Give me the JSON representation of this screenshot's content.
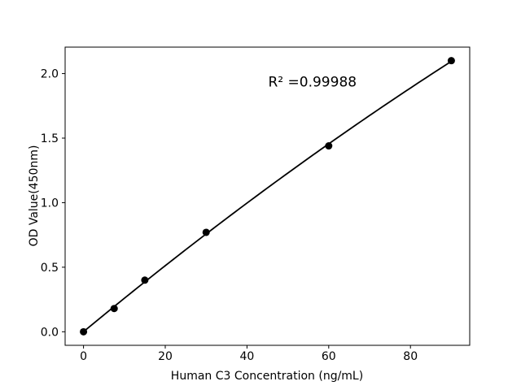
{
  "chart_data": {
    "type": "scatter",
    "title": "",
    "xlabel": "Human C3 Concentration (ng/mL)",
    "ylabel": "OD Value(450nm)",
    "x": [
      0,
      7.5,
      15,
      30,
      60,
      90
    ],
    "y": [
      0.0,
      0.18,
      0.4,
      0.77,
      1.44,
      2.1
    ],
    "fit": {
      "type": "quadratic",
      "draw_range": [
        0,
        90
      ]
    },
    "annotation": {
      "text": "R² =0.99988",
      "x": 45.2,
      "y": 1.9
    },
    "xlim": [
      -4.5,
      94.5
    ],
    "ylim": [
      -0.105,
      2.205
    ],
    "xticks": {
      "values": [
        0,
        20,
        40,
        60,
        80
      ],
      "labels": [
        "0",
        "20",
        "40",
        "60",
        "80"
      ]
    },
    "yticks": {
      "values": [
        0.0,
        0.5,
        1.0,
        1.5,
        2.0
      ],
      "labels": [
        "0.0",
        "0.5",
        "1.0",
        "1.5",
        "2.0"
      ]
    },
    "grid": false,
    "legend_position": "none",
    "marker_color": "#000000",
    "line_color": "#000000",
    "axis_color": "#000000",
    "background": "#ffffff"
  }
}
